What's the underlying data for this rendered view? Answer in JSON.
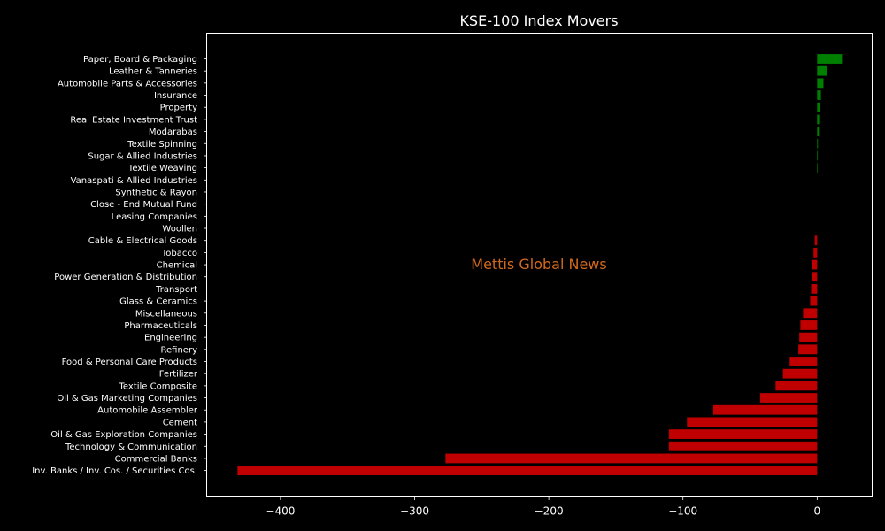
{
  "chart_data": {
    "type": "bar",
    "orientation": "horizontal",
    "title": "KSE-100 Index Movers",
    "xlabel": "",
    "ylabel": "",
    "watermark": "Mettis Global News",
    "xlim": [
      -455,
      41
    ],
    "x_ticks": [
      -400,
      -300,
      -200,
      -100,
      0
    ],
    "x_tick_labels": [
      "−400",
      "−300",
      "−200",
      "−100",
      "0"
    ],
    "grid": false,
    "legend": false,
    "positive_color": "#008000",
    "negative_color": "#c00000",
    "background_color": "#000000",
    "text_color": "#ffffff",
    "watermark_color": "#d2691e",
    "categories": [
      "Paper, Board & Packaging",
      "Leather & Tanneries",
      "Automobile Parts & Accessories",
      "Insurance",
      "Property",
      "Real Estate Investment Trust",
      "Modarabas",
      "Textile Spinning",
      "Sugar & Allied Industries",
      "Textile Weaving",
      "Vanaspati & Allied Industries",
      "Synthetic & Rayon",
      "Close - End Mutual Fund",
      "Leasing Companies",
      "Woollen",
      "Cable & Electrical Goods",
      "Tobacco",
      "Chemical",
      "Power Generation & Distribution",
      "Transport",
      "Glass & Ceramics",
      "Miscellaneous",
      "Pharmaceuticals",
      "Engineering",
      "Refinery",
      "Food & Personal Care Products",
      "Fertilizer",
      "Textile Composite",
      "Oil & Gas Marketing Companies",
      "Automobile Assembler",
      "Cement",
      "Oil & Gas Exploration Companies",
      "Technology & Communication",
      "Commercial Banks",
      "Inv. Banks / Inv. Cos. / Securities Cos."
    ],
    "values": [
      18.5,
      7.2,
      4.7,
      2.8,
      2.1,
      1.5,
      1.3,
      0.6,
      0.5,
      0.4,
      0,
      0,
      0,
      0,
      0,
      -1.8,
      -2.7,
      -3.6,
      -4.0,
      -4.5,
      -5.2,
      -10.5,
      -12.5,
      -13.3,
      -14.0,
      -20.5,
      -25.5,
      -31.0,
      -42.5,
      -77.5,
      -97.0,
      -110.5,
      -110.5,
      -277.0,
      -432.0
    ]
  }
}
